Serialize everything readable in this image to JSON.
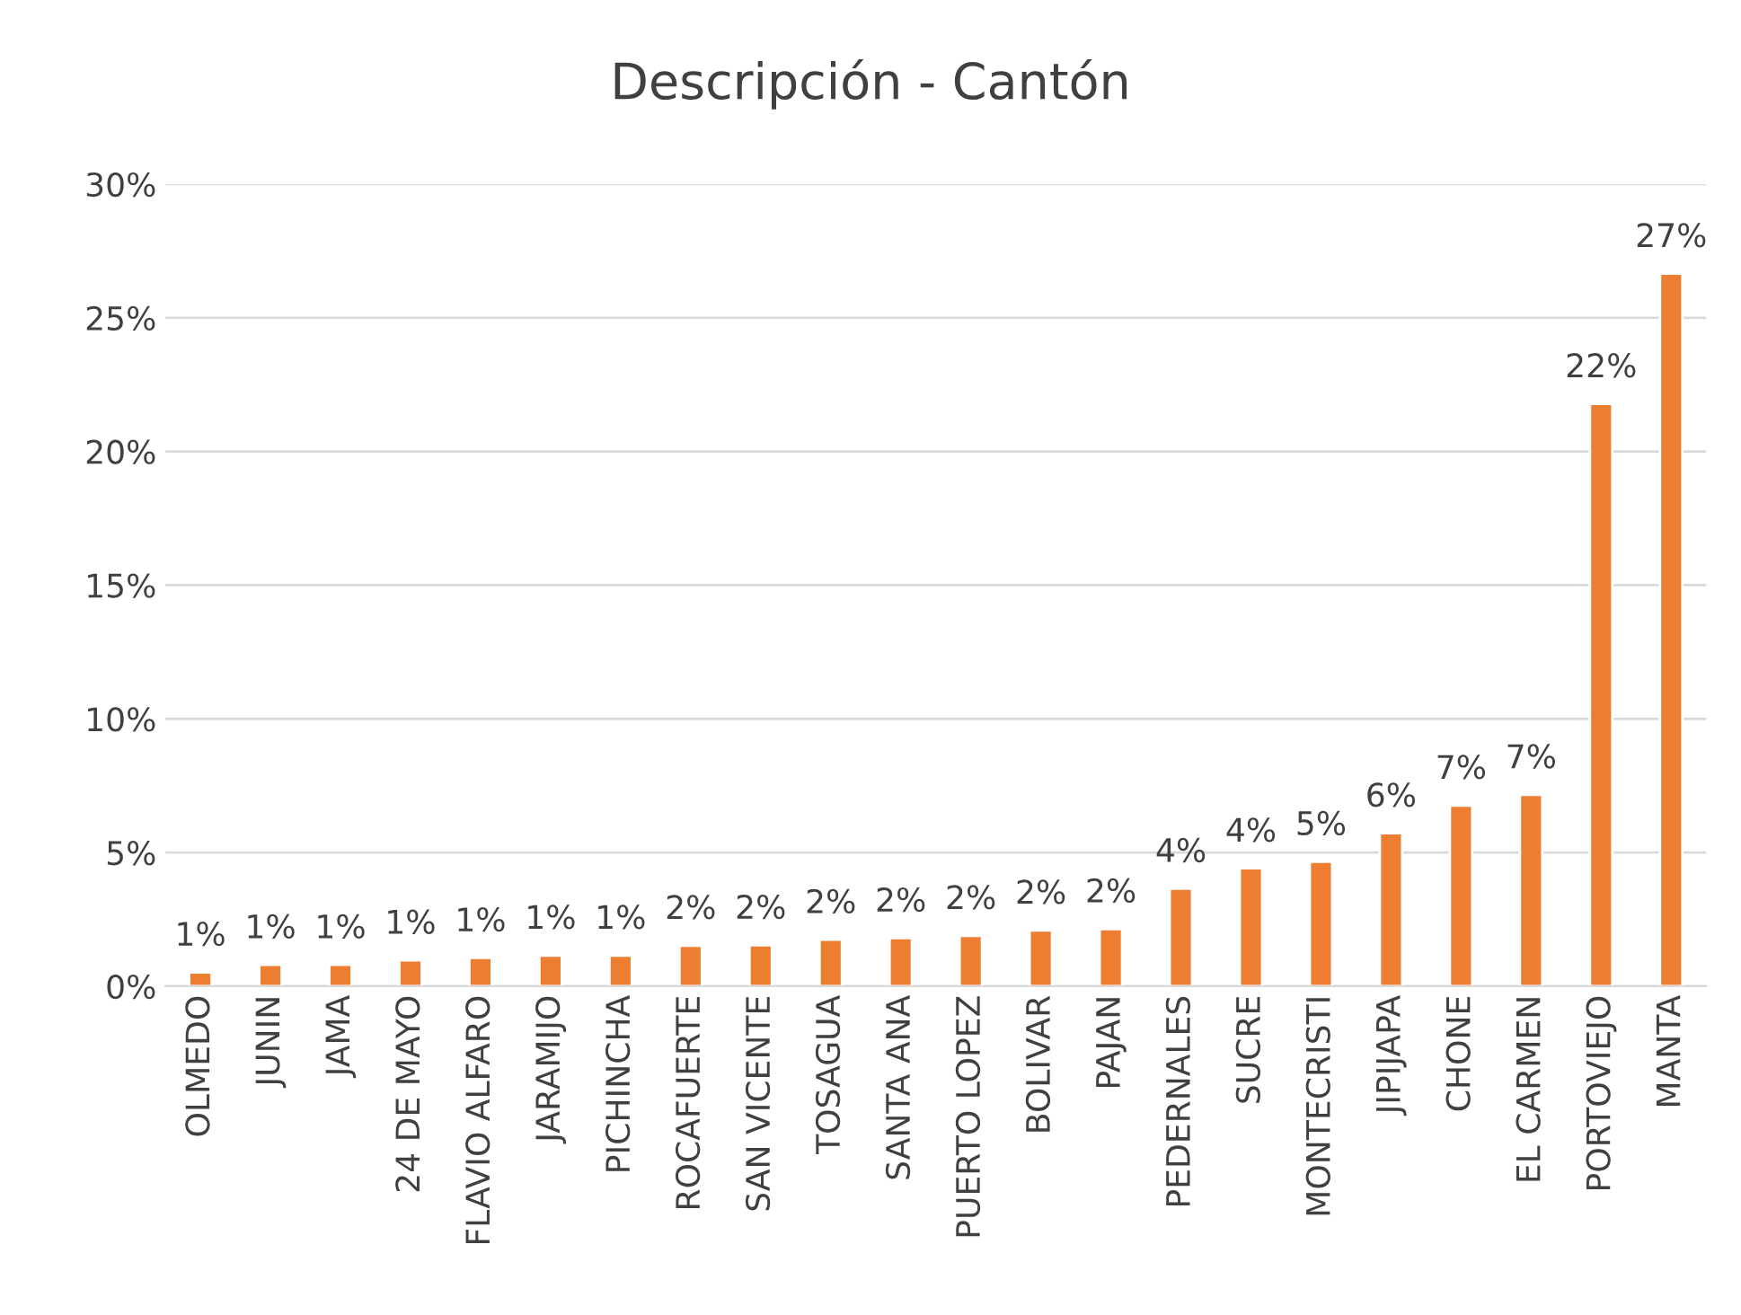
{
  "chart_data": {
    "type": "bar",
    "title": "Descripción - Cantón",
    "categories": [
      "OLMEDO",
      "JUNIN",
      "JAMA",
      "24 DE MAYO",
      "FLAVIO ALFARO",
      "JARAMIJO",
      "PICHINCHA",
      "ROCAFUERTE",
      "SAN VICENTE",
      "TOSAGUA",
      "SANTA ANA",
      "PUERTO LOPEZ",
      "BOLIVAR",
      "PAJAN",
      "PEDERNALES",
      "SUCRE",
      "MONTECRISTI",
      "JIPIJAPA",
      "CHONE",
      "EL CARMEN",
      "PORTOVIEJO",
      "MANTA"
    ],
    "values": [
      0.52,
      0.8,
      0.8,
      0.97,
      1.06,
      1.15,
      1.15,
      1.52,
      1.53,
      1.74,
      1.8,
      1.89,
      2.09,
      2.14,
      3.65,
      4.41,
      4.66,
      5.72,
      6.76,
      7.16,
      21.78,
      26.65
    ],
    "value_labels": [
      "1%",
      "1%",
      "1%",
      "1%",
      "1%",
      "1%",
      "1%",
      "2%",
      "2%",
      "2%",
      "2%",
      "2%",
      "2%",
      "2%",
      "4%",
      "4%",
      "5%",
      "6%",
      "7%",
      "7%",
      "22%",
      "27%"
    ],
    "color": "#ed7d31",
    "ylim": [
      0,
      30
    ],
    "yticks": [
      {
        "value": 0,
        "label": "0%"
      },
      {
        "value": 5,
        "label": "5%"
      },
      {
        "value": 10,
        "label": "10%"
      },
      {
        "value": 15,
        "label": "15%"
      },
      {
        "value": 20,
        "label": "20%"
      },
      {
        "value": 25,
        "label": "25%"
      },
      {
        "value": 30,
        "label": "30%"
      }
    ],
    "grid": "y"
  }
}
